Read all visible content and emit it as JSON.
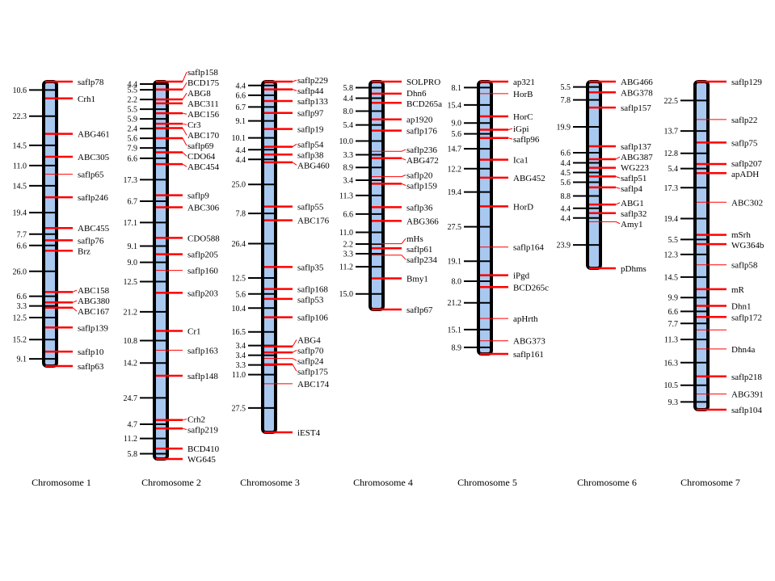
{
  "colors": {
    "bar_fill": "#a8c8f0",
    "bar_outline": "#000000",
    "marker_line": "#ff0000",
    "tick": "#000000"
  },
  "chromosomes": [
    {
      "title": "Chromosome 1",
      "markers": [
        "saflp78",
        "Crh1",
        "ABG461",
        "ABC305",
        "saflp65",
        "saflp246",
        "ABC455",
        "saflp76",
        "Brz",
        "ABC158",
        "ABG380",
        "ABC167",
        "saflp139",
        "saflp10",
        "saflp63"
      ],
      "distances": [
        "10.6",
        "22.3",
        "14.5",
        "11.0",
        "14.5",
        "19.4",
        "7.7",
        "6.6",
        "26.0",
        "6.6",
        "3.3",
        "12.5",
        "15.2",
        "9.1"
      ]
    },
    {
      "title": "Chromosome 2",
      "markers": [
        "saflp158",
        "BCD175",
        "ABG8",
        "ABC311",
        "ABC156",
        "Cr3",
        "ABC170",
        "saflp69",
        "CDO64",
        "ABC454",
        "saflp9",
        "ABC306",
        "CDO588",
        "saflp205",
        "saflp160",
        "saflp203",
        "Cr1",
        "saflp163",
        "saflp148",
        "Crh2",
        "saflp219",
        "BCD410",
        "WG645"
      ],
      "distances": [
        "4.4",
        "5.5",
        "2.2",
        "5.5",
        "5.9",
        "2.4",
        "5.6",
        "7.9",
        "6.6",
        "17.3",
        "6.7",
        "17.1",
        "9.1",
        "9.0",
        "12.5",
        "21.2",
        "10.8",
        "14.2",
        "24.7",
        "4.7",
        "11.2",
        "5.8"
      ]
    },
    {
      "title": "Chromosome 3",
      "markers": [
        "saflp229",
        "saflp44",
        "saflp133",
        "saflp97",
        "saflp19",
        "saflp54",
        "saflp38",
        "ABG460",
        "saflp55",
        "ABC176",
        "saflp35",
        "saflp168",
        "saflp53",
        "saflp106",
        "ABG4",
        "saflp70",
        "saflp24",
        "saflp175",
        "ABC174",
        "iEST4"
      ],
      "distances": [
        "4.4",
        "6.6",
        "6.7",
        "9.1",
        "10.1",
        "4.4",
        "4.4",
        "25.0",
        "7.8",
        "26.4",
        "12.5",
        "5.6",
        "10.4",
        "16.5",
        "3.4",
        "3.4",
        "3.3",
        "11.0",
        "27.5"
      ]
    },
    {
      "title": "Chromosome 4",
      "markers": [
        "SOLPRO",
        "Dhn6",
        "BCD265a",
        "ap1920",
        "saflp176",
        "saflp236",
        "ABG472",
        "saflp20",
        "saflp159",
        "saflp36",
        "ABG366",
        "mHs",
        "saflp61",
        "saflp234",
        "Bmy1",
        "saflp67"
      ],
      "distances": [
        "5.8",
        "4.4",
        "8.0",
        "5.4",
        "10.0",
        "3.3",
        "8.9",
        "3.4",
        "11.3",
        "6.6",
        "11.0",
        "2.2",
        "3.3",
        "11.2",
        "15.0"
      ]
    },
    {
      "title": "Chromosome 5",
      "markers": [
        "ap321",
        "HorB",
        "HorC",
        "iGpi",
        "saflp96",
        "Ica1",
        "ABG452",
        "HorD",
        "saflp164",
        "iPgd",
        "BCD265c",
        "apHrth",
        "ABG373",
        "saflp161"
      ],
      "distances": [
        "8.1",
        "15.4",
        "9.0",
        "5.6",
        "14.7",
        "12.2",
        "19.4",
        "27.5",
        "19.1",
        "8.0",
        "21.2",
        "15.1",
        "8.9"
      ]
    },
    {
      "title": "Chromosome 6",
      "markers": [
        "ABG466",
        "ABG378",
        "saflp157",
        "saflp137",
        "ABG387",
        "WG223",
        "saflp51",
        "saflp4",
        "ABG1",
        "saflp32",
        "Amy1",
        "pDhms"
      ],
      "distances": [
        "5.5",
        "7.8",
        "19.9",
        "6.6",
        "4.4",
        "4.5",
        "5.6",
        "8.8",
        "4.4",
        "4.4",
        "23.9"
      ]
    },
    {
      "title": "Chromosome 7",
      "markers": [
        "saflp129",
        "saflp22",
        "saflp75",
        "saflp207",
        "apADH",
        "ABC302",
        "mSrh",
        "WG364b",
        "saflp58",
        "mR",
        "Dhn1",
        "saflp172",
        "",
        "Dhn4a",
        "saflp218",
        "ABG391",
        "saflp104"
      ],
      "distances": [
        "22.5",
        "13.7",
        "12.8",
        "5.4",
        "17.3",
        "19.4",
        "5.5",
        "12.3",
        "14.5",
        "9.9",
        "6.6",
        "7.7",
        "11.3",
        "16.3",
        "10.5",
        "9.3"
      ]
    }
  ]
}
